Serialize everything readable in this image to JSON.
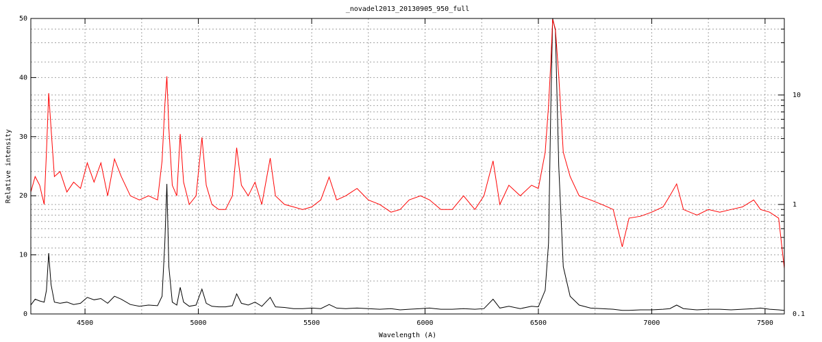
{
  "chart_data": {
    "type": "line",
    "title": "_novadel2013_20130905_950_full",
    "x_label": "Wavelength (A)",
    "y_label": "Relative intensity",
    "xlim": [
      4261,
      7585
    ],
    "xticks": [
      4500,
      5000,
      5500,
      6000,
      6500,
      7000,
      7500
    ],
    "x_minor_grid": [
      4750,
      5250,
      5750,
      6250,
      6750,
      7250
    ],
    "ylim": [
      0,
      50
    ],
    "yticks": [
      0,
      10,
      20,
      30,
      40,
      50
    ],
    "y2lim": [
      0.1,
      50
    ],
    "y2_log": true,
    "y2ticks": [
      0.1,
      1,
      10
    ],
    "y2_minor_grid": [
      0.2,
      0.3,
      0.4,
      0.5,
      0.6,
      0.7,
      0.8,
      0.9,
      2,
      3,
      4,
      5,
      6,
      7,
      8,
      9,
      20,
      30,
      40
    ],
    "grid": true,
    "x": [
      4261,
      4280,
      4300,
      4320,
      4330,
      4340,
      4350,
      4365,
      4390,
      4420,
      4450,
      4480,
      4510,
      4540,
      4570,
      4600,
      4630,
      4660,
      4700,
      4740,
      4780,
      4820,
      4840,
      4852,
      4861,
      4870,
      4885,
      4905,
      4920,
      4935,
      4960,
      4990,
      5016,
      5035,
      5060,
      5090,
      5120,
      5150,
      5169,
      5190,
      5220,
      5250,
      5280,
      5317,
      5340,
      5380,
      5420,
      5460,
      5500,
      5540,
      5577,
      5610,
      5650,
      5700,
      5750,
      5800,
      5850,
      5890,
      5930,
      5980,
      6020,
      6070,
      6120,
      6170,
      6220,
      6260,
      6300,
      6330,
      6370,
      6420,
      6470,
      6500,
      6530,
      6545,
      6555,
      6563,
      6575,
      6590,
      6610,
      6640,
      6680,
      6730,
      6780,
      6830,
      6870,
      6900,
      6950,
      7000,
      7050,
      7080,
      7110,
      7140,
      7200,
      7250,
      7300,
      7350,
      7400,
      7450,
      7480,
      7520,
      7560,
      7585
    ],
    "series": [
      {
        "color": "#000000",
        "values": [
          1.5,
          2.5,
          2.2,
          2.0,
          4.0,
          10.3,
          5.0,
          2.0,
          1.8,
          2.0,
          1.6,
          1.8,
          2.8,
          2.4,
          2.6,
          1.8,
          3.0,
          2.5,
          1.6,
          1.3,
          1.5,
          1.4,
          3.0,
          12,
          22,
          8,
          2.0,
          1.5,
          4.5,
          2.0,
          1.3,
          1.5,
          4.2,
          1.8,
          1.3,
          1.2,
          1.2,
          1.4,
          3.4,
          1.8,
          1.5,
          2.0,
          1.3,
          2.8,
          1.2,
          1.1,
          0.9,
          0.9,
          1.0,
          0.9,
          1.6,
          1.0,
          0.9,
          1.0,
          0.9,
          0.8,
          0.9,
          0.7,
          0.8,
          0.9,
          1.0,
          0.8,
          0.8,
          0.9,
          0.8,
          0.9,
          2.5,
          1.0,
          1.3,
          0.9,
          1.3,
          1.2,
          4,
          12,
          35,
          50,
          48,
          25,
          8,
          3,
          1.5,
          1.0,
          0.9,
          0.8,
          0.6,
          0.6,
          0.7,
          0.7,
          0.8,
          0.9,
          1.5,
          0.9,
          0.7,
          0.8,
          0.8,
          0.7,
          0.8,
          0.9,
          1.0,
          0.8,
          0.7,
          0.6
        ]
      },
      {
        "color": "#ff0000",
        "axis": "y2",
        "values": [
          1.3,
          1.8,
          1.5,
          1.0,
          3.0,
          10.4,
          5.0,
          1.8,
          2.0,
          1.3,
          1.6,
          1.4,
          2.4,
          1.6,
          2.4,
          1.2,
          2.6,
          1.8,
          1.2,
          1.1,
          1.2,
          1.1,
          2.5,
          8,
          14.8,
          5,
          1.5,
          1.2,
          4.4,
          1.6,
          1.0,
          1.2,
          4.1,
          1.5,
          1.0,
          0.9,
          0.9,
          1.2,
          3.3,
          1.5,
          1.2,
          1.6,
          1.0,
          2.65,
          1.2,
          1.0,
          0.95,
          0.9,
          0.95,
          1.1,
          1.78,
          1.1,
          1.2,
          1.4,
          1.1,
          1.0,
          0.85,
          0.9,
          1.1,
          1.2,
          1.1,
          0.9,
          0.9,
          1.2,
          0.9,
          1.2,
          2.5,
          1.0,
          1.5,
          1.2,
          1.5,
          1.4,
          3,
          8,
          20,
          49,
          40,
          15,
          3,
          1.8,
          1.2,
          1.1,
          1.0,
          0.9,
          0.41,
          0.75,
          0.78,
          0.85,
          0.95,
          1.2,
          1.54,
          0.9,
          0.8,
          0.9,
          0.85,
          0.9,
          0.95,
          1.1,
          0.9,
          0.85,
          0.75,
          0.26
        ]
      }
    ]
  }
}
